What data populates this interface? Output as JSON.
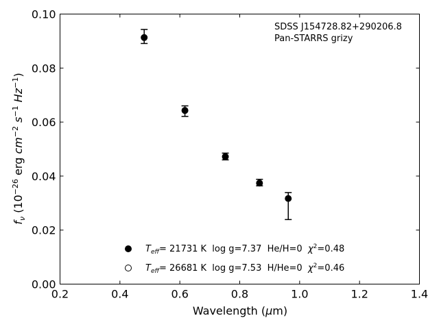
{
  "chart_data": {
    "type": "scatter",
    "title": "",
    "annotations": [
      "SDSS J154728.82+290206.8",
      "Pan-STARRS grizy"
    ],
    "xlabel": {
      "main": "Wavelength (",
      "mu": "μ",
      "unit": "m)"
    },
    "ylabel": {
      "f": "f",
      "nu": "ν",
      "open": " (10",
      "exp26": "−26",
      "erg": " erg ",
      "cm": "cm",
      "exp2": "−2",
      "s": " s",
      "exp1a": "−1",
      "hz": " Hz",
      "exp1b": "−1",
      "close": ")"
    },
    "xlim": [
      0.2,
      1.4
    ],
    "ylim": [
      0.0,
      0.1
    ],
    "x_ticks": [
      "0.2",
      "0.4",
      "0.6",
      "0.8",
      "1.0",
      "1.2",
      "1.4"
    ],
    "y_ticks": [
      "0.00",
      "0.02",
      "0.04",
      "0.06",
      "0.08",
      "0.10"
    ],
    "grid": false,
    "series": [
      {
        "marker": "filled-circle",
        "x": [
          0.481,
          0.617,
          0.752,
          0.866,
          0.962
        ],
        "y": [
          0.0913,
          0.0643,
          0.0472,
          0.0374,
          0.0317
        ],
        "err_low": [
          0.0022,
          0.0022,
          0.0012,
          0.001,
          0.0078
        ],
        "err_high": [
          0.003,
          0.0017,
          0.0013,
          0.0014,
          0.0022
        ]
      }
    ],
    "legend": {
      "placement": "lower-center",
      "entries": [
        {
          "marker": "filled-circle",
          "T": "T",
          "eff": "eff",
          "text": "= 21731 K  log g=7.37  He/H=0  ",
          "chi": "χ",
          "two": "2",
          "chi_val": "=0.48"
        },
        {
          "marker": "open-circle",
          "T": "T",
          "eff": "eff",
          "text": "= 26681 K  log g=7.53  H/He=0  ",
          "chi": "χ",
          "two": "2",
          "chi_val": "=0.46"
        }
      ]
    }
  }
}
